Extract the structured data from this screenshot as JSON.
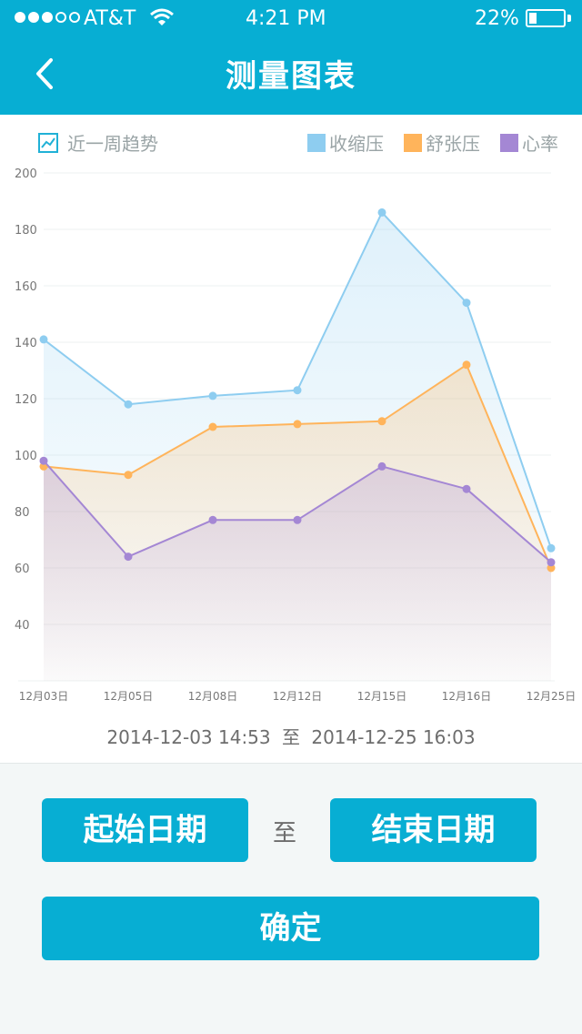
{
  "status_bar": {
    "carrier": "AT&T",
    "time": "4:21  PM",
    "battery": "22%",
    "battery_level": 0.22,
    "signal_bars_on": 3,
    "signal_bars_total": 5
  },
  "header": {
    "title": "测量图表"
  },
  "chart_header": {
    "trend_label": "近一周趋势"
  },
  "chart_data": {
    "type": "area",
    "categories": [
      "12月03日",
      "12月05日",
      "12月08日",
      "12月12日",
      "12月15日",
      "12月16日",
      "12月25日"
    ],
    "series": [
      {
        "name": "收缩压",
        "color": "#8ecdf0",
        "values": [
          141,
          118,
          121,
          123,
          186,
          154,
          67
        ]
      },
      {
        "name": "舒张压",
        "color": "#ffb45b",
        "values": [
          96,
          93,
          110,
          111,
          112,
          132,
          60
        ]
      },
      {
        "name": "心率",
        "color": "#a487d4",
        "values": [
          98,
          64,
          77,
          77,
          96,
          88,
          62
        ]
      }
    ],
    "ylim": [
      20,
      200
    ],
    "yticks": [
      40,
      60,
      80,
      100,
      120,
      140,
      160,
      180,
      200
    ],
    "grid": true,
    "legend": "top-right"
  },
  "range": {
    "start": "2014-12-03  14:53",
    "separator": "至",
    "end": "2014-12-25  16:03"
  },
  "controls": {
    "start_label": "起始日期",
    "between": "至",
    "end_label": "结束日期",
    "confirm_label": "确定"
  }
}
